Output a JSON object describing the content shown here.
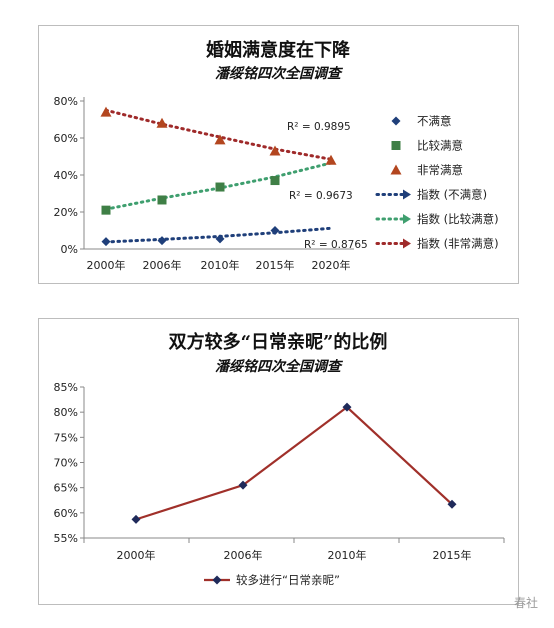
{
  "chart_data": [
    {
      "type": "line",
      "title": "婚姻满意度在下降",
      "subtitle": "潘绥铭四次全国调查",
      "categories": [
        "2000年",
        "2006年",
        "2010年",
        "2015年",
        "2020年"
      ],
      "y_ticks": [
        "0%",
        "20%",
        "40%",
        "60%",
        "80%"
      ],
      "ylim": [
        0,
        80
      ],
      "grid": false,
      "legend_position": "right",
      "series": [
        {
          "name": "不满意",
          "marker": "diamond",
          "color": "#1f3f7a",
          "values": [
            4,
            4.5,
            5.5,
            10,
            null
          ]
        },
        {
          "name": "比较满意",
          "marker": "square",
          "color": "#3f7f46",
          "values": [
            21,
            26.5,
            33.5,
            37,
            null
          ]
        },
        {
          "name": "非常满意",
          "marker": "triangle",
          "color": "#b3461f",
          "values": [
            74,
            68,
            59,
            53,
            48
          ]
        }
      ],
      "trendlines": [
        {
          "name": "指数 (不满意)",
          "color": "#1f3f7a",
          "values": [
            3.8,
            5.2,
            6.8,
            8.8,
            11.2
          ],
          "r2_label": "R² = 0.8765"
        },
        {
          "name": "指数 (比较满意)",
          "color": "#3f9f6f",
          "values": [
            21.5,
            27.5,
            33,
            39,
            46.5
          ],
          "r2_label": "R² = 0.9673"
        },
        {
          "name": "指数 (非常满意)",
          "color": "#9f2a2a",
          "values": [
            75,
            67.5,
            60.5,
            54,
            48.5
          ],
          "r2_label": "R² = 0.9895"
        }
      ]
    },
    {
      "type": "line",
      "title": "双方较多“日常亲昵”的比例",
      "subtitle": "潘绥铭四次全国调查",
      "categories": [
        "2000年",
        "2006年",
        "2010年",
        "2015年"
      ],
      "y_ticks": [
        "55%",
        "60%",
        "65%",
        "70%",
        "75%",
        "80%",
        "85%"
      ],
      "ylim": [
        55,
        85
      ],
      "grid": false,
      "legend_position": "bottom",
      "series": [
        {
          "name": "较多进行“日常亲昵”",
          "marker": "diamond",
          "color": "#a0302a",
          "marker_color": "#1f2a5a",
          "values": [
            58.7,
            65.5,
            81,
            61.7
          ]
        }
      ]
    }
  ],
  "watermark": "春社"
}
